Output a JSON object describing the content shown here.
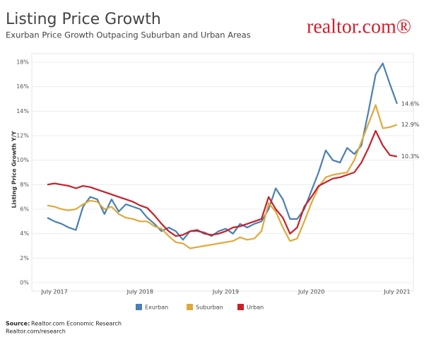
{
  "chart_data": {
    "type": "line",
    "title": "Listing Price Growth",
    "subtitle": "Exurban Price Growth Outpacing Suburban and Urban Areas",
    "brand": "realtor.com®",
    "y_label": "Listing Price Growth Y/Y",
    "source_label": "Source:",
    "source": "Realtor.com Economic Research",
    "source_url": "Realtor.com/research",
    "categories": [
      null,
      "July 2017",
      null,
      null,
      null,
      null,
      null,
      null,
      null,
      null,
      null,
      null,
      null,
      "July 2018",
      null,
      null,
      null,
      null,
      null,
      null,
      null,
      null,
      null,
      null,
      null,
      "July 2019",
      null,
      null,
      null,
      null,
      null,
      null,
      null,
      null,
      null,
      null,
      null,
      "July 2020",
      null,
      null,
      null,
      null,
      null,
      null,
      null,
      null,
      null,
      null,
      null,
      "July 2021"
    ],
    "ylim": [
      0,
      18
    ],
    "yticks": [
      {
        "value": 0,
        "label": "0%"
      },
      {
        "value": 2,
        "label": "2%"
      },
      {
        "value": 4,
        "label": "4%"
      },
      {
        "value": 6,
        "label": "6%"
      },
      {
        "value": 8,
        "label": "8%"
      },
      {
        "value": 10,
        "label": "10%"
      },
      {
        "value": 12,
        "label": "12%"
      },
      {
        "value": 14,
        "label": "14%"
      },
      {
        "value": 16,
        "label": "16%"
      },
      {
        "value": 18,
        "label": "18%"
      }
    ],
    "grid": true,
    "legend": "bottom",
    "series": [
      {
        "name": "Exurban",
        "color": "#4a7fb5",
        "values": [
          5.3,
          5.0,
          4.8,
          4.5,
          4.3,
          6.2,
          7.0,
          6.8,
          5.6,
          6.8,
          5.8,
          6.4,
          6.2,
          6.0,
          5.3,
          4.8,
          4.2,
          4.5,
          4.2,
          3.5,
          4.2,
          4.2,
          4.1,
          3.8,
          4.2,
          4.4,
          4.0,
          4.8,
          4.5,
          4.8,
          5.0,
          6.0,
          7.7,
          6.8,
          5.2,
          5.2,
          6.0,
          7.5,
          9.0,
          10.8,
          10.0,
          9.8,
          11.0,
          10.5,
          11.2,
          14.0,
          17.0,
          17.9,
          16.2,
          14.6
        ],
        "value_labels": [
          null,
          null,
          null,
          null,
          null,
          null,
          null,
          null,
          null,
          null,
          null,
          null,
          null,
          null,
          null,
          null,
          null,
          null,
          null,
          null,
          null,
          null,
          null,
          null,
          null,
          null,
          null,
          null,
          null,
          null,
          null,
          null,
          null,
          null,
          null,
          null,
          null,
          null,
          null,
          null,
          null,
          null,
          null,
          null,
          null,
          null,
          null,
          null,
          null,
          "14.6%"
        ]
      },
      {
        "name": "Suburban",
        "color": "#e0a93b",
        "values": [
          6.3,
          6.2,
          6.0,
          5.9,
          6.0,
          6.4,
          6.7,
          6.6,
          6.0,
          6.2,
          5.6,
          5.3,
          5.2,
          5.0,
          5.0,
          4.6,
          4.4,
          3.8,
          3.3,
          3.2,
          2.8,
          2.9,
          3.0,
          3.1,
          3.2,
          3.3,
          3.4,
          3.7,
          3.5,
          3.6,
          4.2,
          6.5,
          5.8,
          4.5,
          3.4,
          3.6,
          5.0,
          6.5,
          7.8,
          8.6,
          8.8,
          8.9,
          9.0,
          10.0,
          11.5,
          13.0,
          14.5,
          12.6,
          12.7,
          12.9
        ],
        "value_labels": [
          null,
          null,
          null,
          null,
          null,
          null,
          null,
          null,
          null,
          null,
          null,
          null,
          null,
          null,
          null,
          null,
          null,
          null,
          null,
          null,
          null,
          null,
          null,
          null,
          null,
          null,
          null,
          null,
          null,
          null,
          null,
          null,
          null,
          null,
          null,
          null,
          null,
          null,
          null,
          null,
          null,
          null,
          null,
          null,
          null,
          null,
          null,
          null,
          null,
          "12.9%"
        ]
      },
      {
        "name": "Urban",
        "color": "#c8202a",
        "values": [
          8.0,
          8.1,
          8.0,
          7.9,
          7.7,
          7.9,
          7.8,
          7.6,
          7.4,
          7.2,
          7.0,
          6.8,
          6.6,
          6.3,
          6.1,
          5.5,
          4.8,
          4.2,
          3.8,
          3.9,
          4.2,
          4.3,
          4.0,
          3.9,
          4.0,
          4.2,
          4.5,
          4.6,
          4.8,
          5.0,
          5.2,
          7.0,
          6.0,
          5.3,
          4.0,
          4.5,
          6.2,
          7.0,
          7.9,
          8.2,
          8.5,
          8.6,
          8.8,
          9.0,
          9.8,
          11.0,
          12.4,
          11.2,
          10.4,
          10.3
        ],
        "value_labels": [
          null,
          null,
          null,
          null,
          null,
          null,
          null,
          null,
          null,
          null,
          null,
          null,
          null,
          null,
          null,
          null,
          null,
          null,
          null,
          null,
          null,
          null,
          null,
          null,
          null,
          null,
          null,
          null,
          null,
          null,
          null,
          null,
          null,
          null,
          null,
          null,
          null,
          null,
          null,
          null,
          null,
          null,
          null,
          null,
          null,
          null,
          null,
          null,
          null,
          "10.3%"
        ]
      }
    ]
  }
}
